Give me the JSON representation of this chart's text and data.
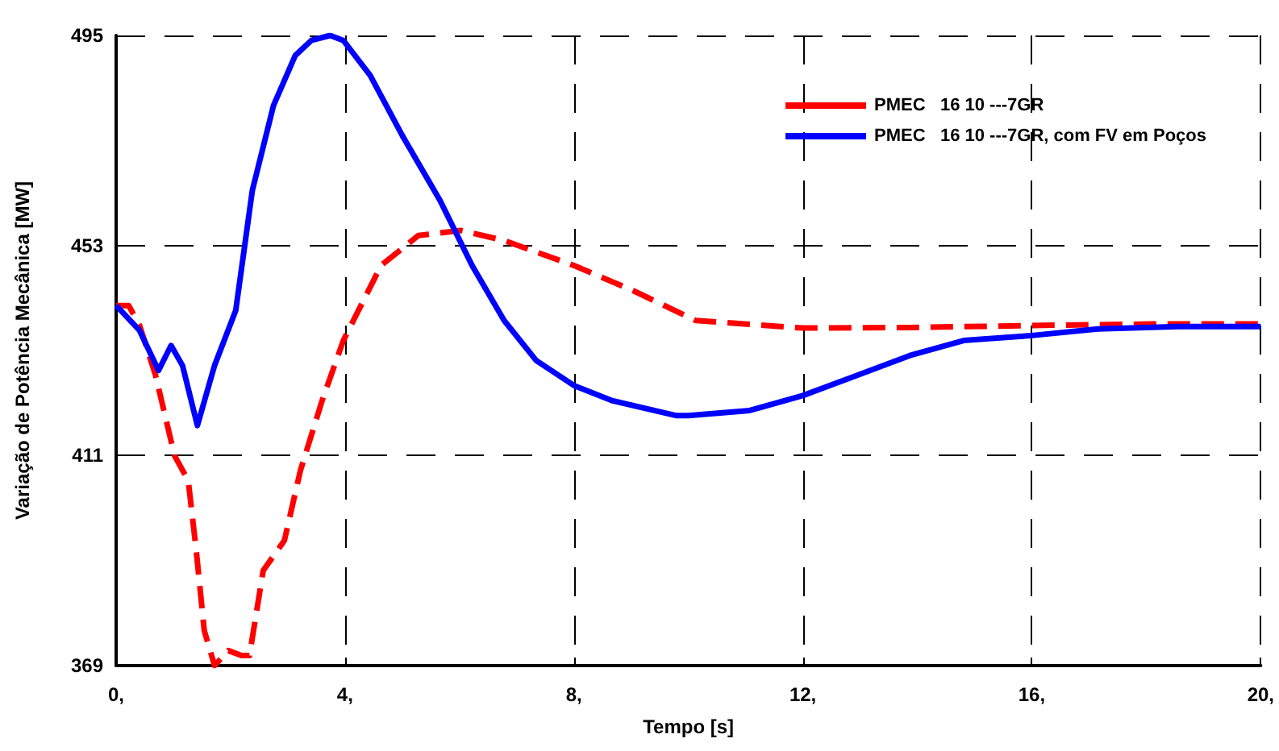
{
  "chart_data": {
    "type": "line",
    "xlabel": "Tempo [s]",
    "ylabel": "Variação de Potência Mecânica [MW]",
    "xlim": [
      0,
      20
    ],
    "xticks": [
      {
        "value": 0,
        "label": "0,"
      },
      {
        "value": 4,
        "label": "4,"
      },
      {
        "value": 8,
        "label": "8,"
      },
      {
        "value": 12,
        "label": "12,"
      },
      {
        "value": 16,
        "label": "16,"
      },
      {
        "value": 20,
        "label": "20,"
      }
    ],
    "ylim": [
      369,
      495
    ],
    "yticks": [
      369,
      411,
      453,
      495
    ],
    "grid": true,
    "legend": "top right",
    "marker": "none",
    "series": [
      {
        "name": "PMEC   16 10 ---7GR",
        "color": "#ff0000",
        "line_style": "dashed",
        "x": [
          0,
          0.22,
          0.41,
          0.69,
          1.02,
          1.26,
          1.4,
          1.54,
          1.72,
          1.96,
          2.19,
          2.33,
          2.57,
          2.94,
          3.22,
          3.6,
          3.97,
          4.63,
          5.28,
          6.03,
          6.78,
          8,
          9.03,
          10.13,
          12,
          13.87,
          16,
          18.1,
          20
        ],
        "values": [
          441,
          441,
          437,
          427,
          411,
          406,
          392,
          376,
          369,
          372,
          371,
          371,
          388,
          394,
          408,
          422,
          434,
          449,
          455,
          456,
          454,
          449,
          444,
          438,
          436.5,
          436.6,
          437,
          437.3,
          437.3
        ]
      },
      {
        "name": "PMEC   16 10 ---7GR, com FV em Poços",
        "color": "#0000ff",
        "line_style": "solid",
        "x": [
          0,
          0.41,
          0.74,
          0.96,
          1.16,
          1.42,
          1.72,
          2.09,
          2.38,
          2.75,
          3.13,
          3.41,
          3.74,
          3.97,
          4.44,
          5,
          5.66,
          6.22,
          6.78,
          7.34,
          8,
          8.66,
          9.78,
          10,
          11.07,
          12,
          12.94,
          13.87,
          14.81,
          16,
          17.15,
          18.56,
          20
        ],
        "values": [
          441,
          436,
          428,
          433,
          429,
          417,
          429,
          440,
          464,
          481,
          491,
          494,
          495,
          494,
          487,
          475,
          462,
          449,
          438,
          430,
          425,
          422,
          419,
          419,
          420,
          423,
          427,
          431,
          434,
          435,
          436.3,
          436.8,
          436.8
        ]
      }
    ]
  }
}
